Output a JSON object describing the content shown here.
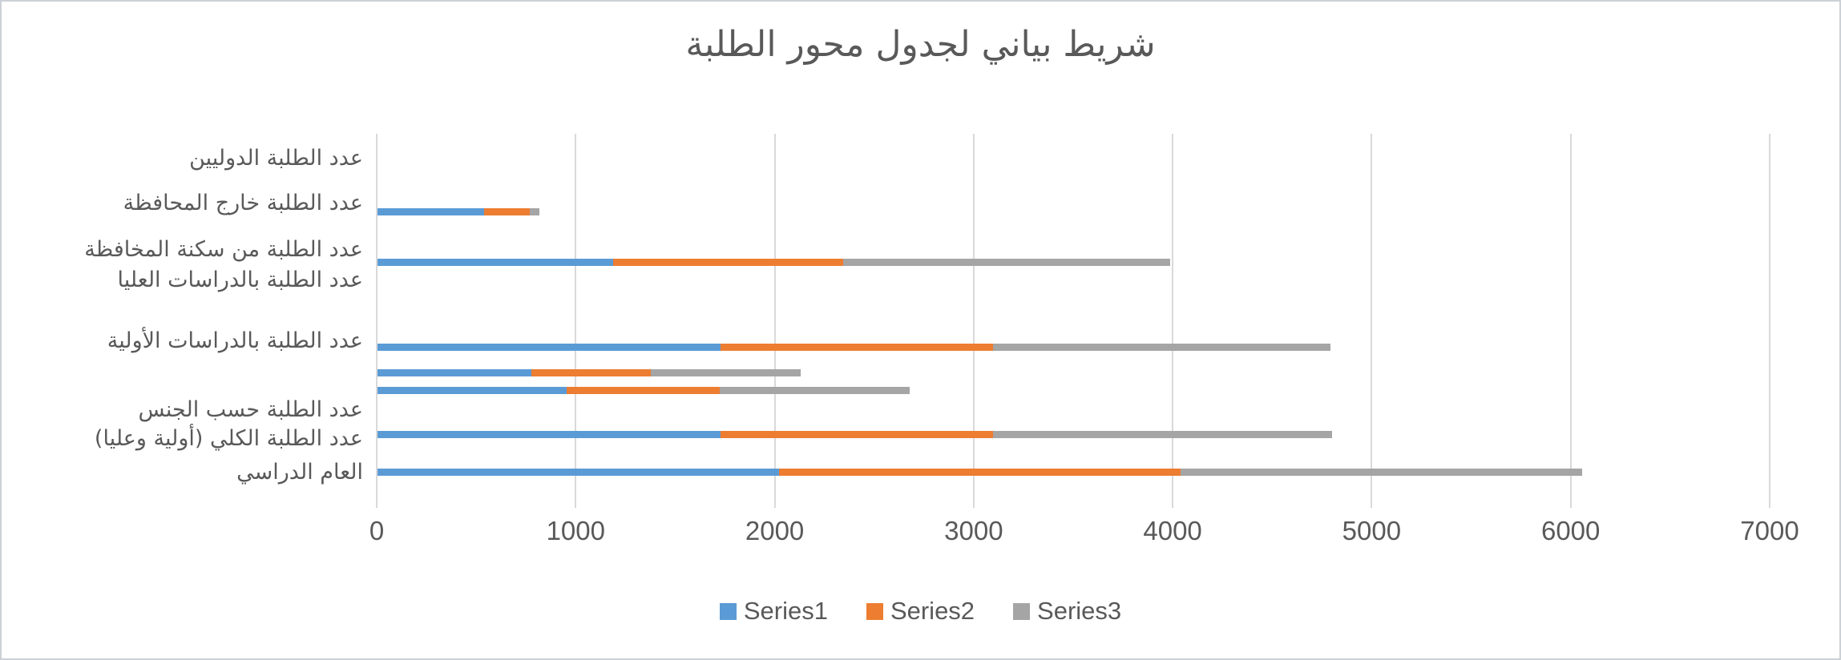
{
  "page": {
    "background": "#ffffff",
    "border_color": "#ccd1d6"
  },
  "chart_data": {
    "type": "bar",
    "variant": "horizontal-stacked",
    "title": "شريط بياني لجدول محور الطلبة",
    "title_color": "#595959",
    "text_color": "#595959",
    "gridline_color": "#d9d9d9",
    "grid": true,
    "legend_position": "bottom",
    "x_axis": {
      "min": 0,
      "max": 7000,
      "step": 1000,
      "tick_labels": [
        "0",
        "1000",
        "2000",
        "3000",
        "4000",
        "5000",
        "6000",
        "7000"
      ]
    },
    "series": [
      {
        "name": "Series1",
        "color": "#5b9bd5"
      },
      {
        "name": "Series2",
        "color": "#ed7d31"
      },
      {
        "name": "Series3",
        "color": "#a5a5a5"
      }
    ],
    "rows": [
      {
        "label": "عدد الطلبة الدوليين",
        "values": [
          0,
          0,
          0
        ],
        "label_y": 0.066,
        "bar_y": null
      },
      {
        "label": "عدد الطلبة خارج المحافظة",
        "values": [
          535,
          230,
          50
        ],
        "label_y": 0.186,
        "bar_y": 0.208
      },
      {
        "label": "عدد الطلبة من سكنة المخافظة",
        "values": [
          1185,
          1155,
          1645
        ],
        "label_y": 0.31,
        "bar_y": 0.343
      },
      {
        "label": "عدد الطلبة بالدراسات العليا",
        "values": [
          0,
          0,
          0
        ],
        "label_y": 0.392,
        "bar_y": null
      },
      {
        "label": "عدد الطلبة بالدراسات الأولية",
        "values": [
          1725,
          1370,
          1695
        ],
        "label_y": 0.554,
        "bar_y": 0.57
      },
      {
        "label": null,
        "values": [
          775,
          600,
          750
        ],
        "label_y": null,
        "bar_y": 0.64
      },
      {
        "label": null,
        "values": [
          950,
          770,
          955
        ],
        "label_y": null,
        "bar_y": 0.687
      },
      {
        "label": "عدد الطلبة حسب الجنس",
        "values": [
          0,
          0,
          0
        ],
        "label_y": 0.739,
        "bar_y": null
      },
      {
        "label": "عدد الطلبة الكلي (أولية وعليا)",
        "values": [
          1725,
          1370,
          1700
        ],
        "label_y": 0.816,
        "bar_y": 0.804
      },
      {
        "label": "العام الدراسي",
        "values": [
          2017,
          2018,
          2019
        ],
        "label_y": 0.906,
        "bar_y": 0.904
      }
    ]
  }
}
